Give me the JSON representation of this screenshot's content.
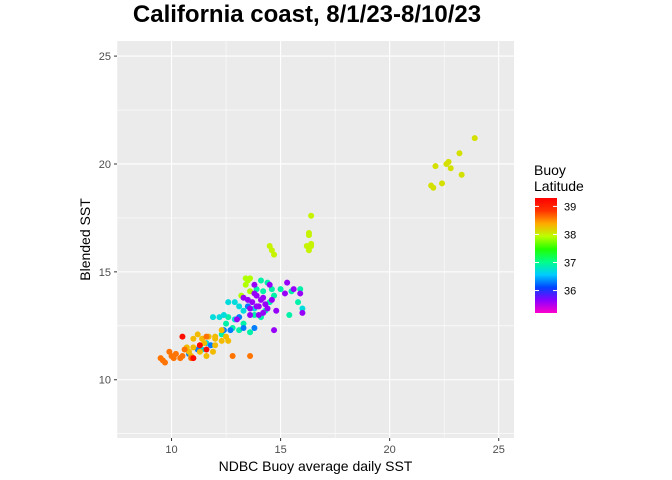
{
  "chart_data": {
    "type": "scatter",
    "title": "California coast, 8/1/23-8/10/23",
    "xlabel": "NDBC Buoy average daily SST",
    "ylabel": "Blended SST",
    "xlim": [
      7.5,
      25.7
    ],
    "ylim": [
      7.3,
      25.7
    ],
    "x_ticks": [
      10,
      15,
      20,
      25
    ],
    "y_ticks": [
      10,
      15,
      20,
      25
    ],
    "grid": true,
    "legend": {
      "title_lines": [
        "Buoy",
        "Latitude"
      ],
      "placement": "right",
      "range": [
        35.2,
        39.3
      ],
      "ticks": [
        36,
        37,
        38,
        39
      ],
      "colors": [
        "#ff00cc",
        "#8800ff",
        "#0044ff",
        "#00ccff",
        "#00ff88",
        "#22ff00",
        "#bbff00",
        "#ffaa00",
        "#ff3300",
        "#ff0000"
      ]
    },
    "points": [
      {
        "x": 21.9,
        "y": 19.0,
        "lat": 38.1
      },
      {
        "x": 22.0,
        "y": 18.9,
        "lat": 38.1
      },
      {
        "x": 22.1,
        "y": 19.9,
        "lat": 38.1
      },
      {
        "x": 22.4,
        "y": 19.1,
        "lat": 38.1
      },
      {
        "x": 22.6,
        "y": 20.0,
        "lat": 38.1
      },
      {
        "x": 22.7,
        "y": 20.1,
        "lat": 38.1
      },
      {
        "x": 22.8,
        "y": 19.8,
        "lat": 38.1
      },
      {
        "x": 23.2,
        "y": 20.5,
        "lat": 38.1
      },
      {
        "x": 23.3,
        "y": 19.5,
        "lat": 38.1
      },
      {
        "x": 23.9,
        "y": 21.2,
        "lat": 38.1
      },
      {
        "x": 16.4,
        "y": 17.6,
        "lat": 38.0
      },
      {
        "x": 16.3,
        "y": 16.7,
        "lat": 38.0
      },
      {
        "x": 16.4,
        "y": 16.3,
        "lat": 38.0
      },
      {
        "x": 16.2,
        "y": 16.2,
        "lat": 38.0
      },
      {
        "x": 16.3,
        "y": 16.0,
        "lat": 38.0
      },
      {
        "x": 16.4,
        "y": 16.2,
        "lat": 38.0
      },
      {
        "x": 16.3,
        "y": 16.8,
        "lat": 38.0
      },
      {
        "x": 14.5,
        "y": 16.2,
        "lat": 38.0
      },
      {
        "x": 14.6,
        "y": 16.0,
        "lat": 38.0
      },
      {
        "x": 14.7,
        "y": 15.8,
        "lat": 38.0
      },
      {
        "x": 13.4,
        "y": 14.7,
        "lat": 37.9
      },
      {
        "x": 13.5,
        "y": 14.6,
        "lat": 37.9
      },
      {
        "x": 13.6,
        "y": 14.7,
        "lat": 37.9
      },
      {
        "x": 13.4,
        "y": 14.4,
        "lat": 37.9
      },
      {
        "x": 13.6,
        "y": 14.1,
        "lat": 37.9
      },
      {
        "x": 13.2,
        "y": 13.9,
        "lat": 37.9
      },
      {
        "x": 14.1,
        "y": 14.6,
        "lat": 36.9
      },
      {
        "x": 14.2,
        "y": 14.1,
        "lat": 36.9
      },
      {
        "x": 14.4,
        "y": 14.5,
        "lat": 36.9
      },
      {
        "x": 14.6,
        "y": 14.2,
        "lat": 36.9
      },
      {
        "x": 14.7,
        "y": 13.9,
        "lat": 36.9
      },
      {
        "x": 13.9,
        "y": 14.2,
        "lat": 36.9
      },
      {
        "x": 14.5,
        "y": 13.6,
        "lat": 36.9
      },
      {
        "x": 14.3,
        "y": 13.2,
        "lat": 36.9
      },
      {
        "x": 13.8,
        "y": 13.0,
        "lat": 36.9
      },
      {
        "x": 14.1,
        "y": 12.9,
        "lat": 36.9
      },
      {
        "x": 15.0,
        "y": 14.2,
        "lat": 36.9
      },
      {
        "x": 15.5,
        "y": 14.1,
        "lat": 36.9
      },
      {
        "x": 15.9,
        "y": 14.2,
        "lat": 36.9
      },
      {
        "x": 15.8,
        "y": 13.6,
        "lat": 36.9
      },
      {
        "x": 15.4,
        "y": 13.0,
        "lat": 36.9
      },
      {
        "x": 13.3,
        "y": 12.6,
        "lat": 36.9
      },
      {
        "x": 13.6,
        "y": 12.2,
        "lat": 36.9
      },
      {
        "x": 13.1,
        "y": 12.3,
        "lat": 36.9
      },
      {
        "x": 12.8,
        "y": 12.4,
        "lat": 36.9
      },
      {
        "x": 12.5,
        "y": 12.6,
        "lat": 36.9
      },
      {
        "x": 12.3,
        "y": 12.1,
        "lat": 36.9
      },
      {
        "x": 12.6,
        "y": 12.9,
        "lat": 36.9
      },
      {
        "x": 12.9,
        "y": 13.6,
        "lat": 36.7
      },
      {
        "x": 13.1,
        "y": 13.4,
        "lat": 36.7
      },
      {
        "x": 13.3,
        "y": 13.2,
        "lat": 36.7
      },
      {
        "x": 12.4,
        "y": 13.0,
        "lat": 36.7
      },
      {
        "x": 12.2,
        "y": 12.9,
        "lat": 36.7
      },
      {
        "x": 11.9,
        "y": 12.9,
        "lat": 36.7
      },
      {
        "x": 12.6,
        "y": 13.6,
        "lat": 36.7
      },
      {
        "x": 11.6,
        "y": 11.7,
        "lat": 36.7
      },
      {
        "x": 11.4,
        "y": 11.4,
        "lat": 36.7
      },
      {
        "x": 16.0,
        "y": 13.3,
        "lat": 36.7
      },
      {
        "x": 12.9,
        "y": 12.8,
        "lat": 36.7
      },
      {
        "x": 13.8,
        "y": 13.3,
        "lat": 36.7
      },
      {
        "x": 13.1,
        "y": 12.9,
        "lat": 36.3
      },
      {
        "x": 12.7,
        "y": 12.3,
        "lat": 36.3
      },
      {
        "x": 12.4,
        "y": 12.3,
        "lat": 36.3
      },
      {
        "x": 13.3,
        "y": 12.4,
        "lat": 36.3
      },
      {
        "x": 11.8,
        "y": 11.6,
        "lat": 36.3
      },
      {
        "x": 11.2,
        "y": 11.4,
        "lat": 36.3
      },
      {
        "x": 10.8,
        "y": 11.2,
        "lat": 36.3
      },
      {
        "x": 13.8,
        "y": 12.4,
        "lat": 36.3
      },
      {
        "x": 13.5,
        "y": 13.4,
        "lat": 36.3
      },
      {
        "x": 13.7,
        "y": 13.6,
        "lat": 35.6
      },
      {
        "x": 14.0,
        "y": 13.4,
        "lat": 35.6
      },
      {
        "x": 14.2,
        "y": 13.8,
        "lat": 35.6
      },
      {
        "x": 13.6,
        "y": 13.3,
        "lat": 35.6
      },
      {
        "x": 14.0,
        "y": 13.0,
        "lat": 35.6
      },
      {
        "x": 13.9,
        "y": 13.9,
        "lat": 35.6
      },
      {
        "x": 14.3,
        "y": 13.5,
        "lat": 35.6
      },
      {
        "x": 14.4,
        "y": 13.3,
        "lat": 35.6
      },
      {
        "x": 13.5,
        "y": 13.7,
        "lat": 35.6
      },
      {
        "x": 13.8,
        "y": 14.0,
        "lat": 35.6
      },
      {
        "x": 14.1,
        "y": 13.7,
        "lat": 35.6
      },
      {
        "x": 13.3,
        "y": 13.8,
        "lat": 35.6
      },
      {
        "x": 13.9,
        "y": 13.4,
        "lat": 35.6
      },
      {
        "x": 14.6,
        "y": 13.7,
        "lat": 35.6
      },
      {
        "x": 15.3,
        "y": 14.5,
        "lat": 35.6
      },
      {
        "x": 15.6,
        "y": 14.2,
        "lat": 35.6
      },
      {
        "x": 15.9,
        "y": 14.0,
        "lat": 35.6
      },
      {
        "x": 15.2,
        "y": 14.0,
        "lat": 35.6
      },
      {
        "x": 16.0,
        "y": 13.1,
        "lat": 35.6
      },
      {
        "x": 14.8,
        "y": 13.2,
        "lat": 35.6
      },
      {
        "x": 14.5,
        "y": 14.4,
        "lat": 35.6
      },
      {
        "x": 13.8,
        "y": 14.4,
        "lat": 35.6
      },
      {
        "x": 14.7,
        "y": 12.3,
        "lat": 35.6
      },
      {
        "x": 13.0,
        "y": 12.8,
        "lat": 35.6
      },
      {
        "x": 14.2,
        "y": 13.1,
        "lat": 35.6
      },
      {
        "x": 13.6,
        "y": 13.0,
        "lat": 35.6
      },
      {
        "x": 12.0,
        "y": 12.0,
        "lat": 38.3
      },
      {
        "x": 11.7,
        "y": 12.0,
        "lat": 38.3
      },
      {
        "x": 11.4,
        "y": 11.9,
        "lat": 38.3
      },
      {
        "x": 11.0,
        "y": 11.9,
        "lat": 38.3
      },
      {
        "x": 11.2,
        "y": 12.1,
        "lat": 38.3
      },
      {
        "x": 11.5,
        "y": 11.7,
        "lat": 38.3
      },
      {
        "x": 11.0,
        "y": 11.5,
        "lat": 38.3
      },
      {
        "x": 10.8,
        "y": 11.3,
        "lat": 38.3
      },
      {
        "x": 10.7,
        "y": 11.5,
        "lat": 38.3
      },
      {
        "x": 11.3,
        "y": 11.3,
        "lat": 38.3
      },
      {
        "x": 12.0,
        "y": 11.6,
        "lat": 38.3
      },
      {
        "x": 12.3,
        "y": 11.8,
        "lat": 38.3
      },
      {
        "x": 11.9,
        "y": 11.3,
        "lat": 38.3
      },
      {
        "x": 11.6,
        "y": 11.1,
        "lat": 38.3
      },
      {
        "x": 10.9,
        "y": 11.1,
        "lat": 38.3
      },
      {
        "x": 11.3,
        "y": 11.6,
        "lat": 38.3
      },
      {
        "x": 12.5,
        "y": 12.0,
        "lat": 38.3
      },
      {
        "x": 12.6,
        "y": 11.8,
        "lat": 38.3
      },
      {
        "x": 12.0,
        "y": 11.9,
        "lat": 38.3
      },
      {
        "x": 12.3,
        "y": 12.3,
        "lat": 38.3
      },
      {
        "x": 9.6,
        "y": 10.9,
        "lat": 38.6
      },
      {
        "x": 9.5,
        "y": 11.0,
        "lat": 38.6
      },
      {
        "x": 9.7,
        "y": 10.8,
        "lat": 38.6
      },
      {
        "x": 9.9,
        "y": 11.3,
        "lat": 38.6
      },
      {
        "x": 10.2,
        "y": 11.2,
        "lat": 38.6
      },
      {
        "x": 10.1,
        "y": 11.0,
        "lat": 38.6
      },
      {
        "x": 10.4,
        "y": 11.0,
        "lat": 38.6
      },
      {
        "x": 10.6,
        "y": 11.4,
        "lat": 38.6
      },
      {
        "x": 10.9,
        "y": 11.0,
        "lat": 38.6
      },
      {
        "x": 10.5,
        "y": 11.1,
        "lat": 38.6
      },
      {
        "x": 10.0,
        "y": 11.1,
        "lat": 38.6
      },
      {
        "x": 12.8,
        "y": 11.1,
        "lat": 38.6
      },
      {
        "x": 13.6,
        "y": 11.1,
        "lat": 38.6
      },
      {
        "x": 11.6,
        "y": 12.0,
        "lat": 38.6
      },
      {
        "x": 10.5,
        "y": 12.0,
        "lat": 39.2
      },
      {
        "x": 11.0,
        "y": 11.0,
        "lat": 39.2
      },
      {
        "x": 11.3,
        "y": 11.6,
        "lat": 39.2
      },
      {
        "x": 11.6,
        "y": 11.4,
        "lat": 39.2
      }
    ]
  }
}
